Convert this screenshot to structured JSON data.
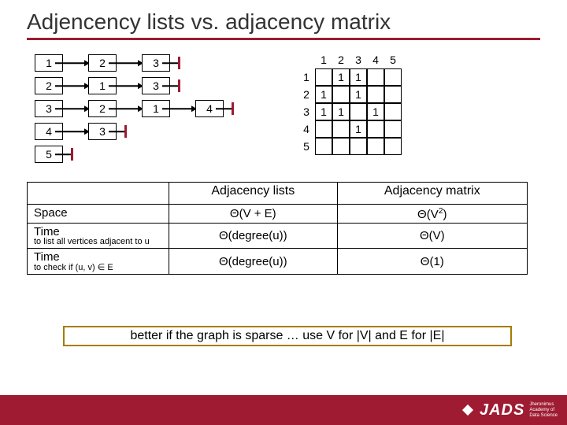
{
  "title": "Adjencency lists vs. adjacency matrix",
  "adj_list": {
    "rows": [
      {
        "head": "1",
        "nodes": [
          "2",
          "3"
        ]
      },
      {
        "head": "2",
        "nodes": [
          "1",
          "3"
        ]
      },
      {
        "head": "3",
        "nodes": [
          "2",
          "1",
          "4"
        ]
      },
      {
        "head": "4",
        "nodes": [
          "3"
        ]
      },
      {
        "head": "5",
        "nodes": []
      }
    ],
    "border_color": "#000000",
    "tail_bar_color": "#9e1b32"
  },
  "matrix": {
    "col_headers": [
      "1",
      "2",
      "3",
      "4",
      "5"
    ],
    "row_headers": [
      "1",
      "2",
      "3",
      "4",
      "5"
    ],
    "cells": [
      [
        "",
        "1",
        "1",
        "",
        ""
      ],
      [
        "1",
        "",
        "1",
        "",
        ""
      ],
      [
        "1",
        "1",
        "",
        "1",
        ""
      ],
      [
        "",
        "",
        "1",
        "",
        ""
      ],
      [
        "",
        "",
        "",
        "",
        ""
      ]
    ],
    "grid_color": "#000000"
  },
  "comparison": {
    "columns": [
      "Adjacency lists",
      "Adjacency matrix"
    ],
    "rows": [
      {
        "label": "Space",
        "sub": "",
        "lists": "Θ(V + E)",
        "matrix": "Θ(V2)",
        "matrix_sup": true
      },
      {
        "label": "Time",
        "sub": "to list all vertices adjacent to u",
        "lists": "Θ(degree(u))",
        "matrix": "Θ(V)"
      },
      {
        "label": "Time",
        "sub": "to check if (u, v) ∈ E",
        "lists": "Θ(degree(u))",
        "matrix": "Θ(1)"
      }
    ]
  },
  "note": "better if the graph is sparse … use V for |V| and E for |E|",
  "note_border": "#a67c00",
  "accent_color": "#9e1b32",
  "logo_text": "JADS",
  "logo_tag1": "Jheronimus",
  "logo_tag2": "Academy of",
  "logo_tag3": "Data Science"
}
